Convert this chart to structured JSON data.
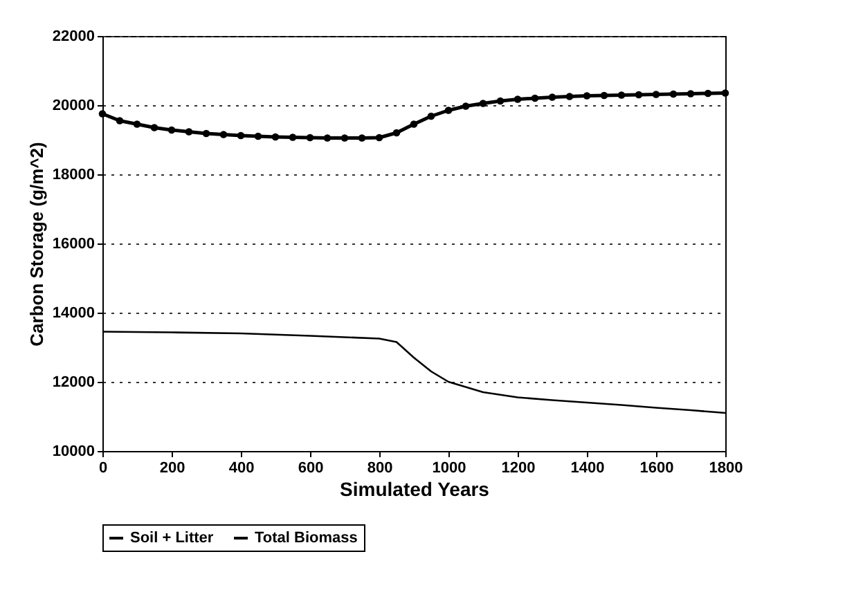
{
  "chart_data": {
    "type": "line",
    "xlabel": "Simulated Years",
    "ylabel": "Carbon Storage (g/m^2)",
    "xlim": [
      0,
      1800
    ],
    "xticks": [
      0,
      200,
      400,
      600,
      800,
      1000,
      1200,
      1400,
      1600,
      1800
    ],
    "ylim": [
      10000,
      22000
    ],
    "yticks": [
      10000,
      12000,
      14000,
      16000,
      18000,
      20000,
      22000
    ],
    "grid": "y",
    "legend": "bottom",
    "series": [
      {
        "name": "Soil + Litter",
        "color": "#000000",
        "marker": "none",
        "x": [
          0,
          200,
          400,
          600,
          800,
          850,
          900,
          950,
          1000,
          1100,
          1200,
          1300,
          1400,
          1500,
          1600,
          1700,
          1800
        ],
        "values": [
          13450,
          13430,
          13400,
          13330,
          13250,
          13150,
          12700,
          12300,
          12000,
          11700,
          11550,
          11470,
          11400,
          11330,
          11250,
          11180,
          11100
        ]
      },
      {
        "name": "Total Biomass",
        "color": "#000000",
        "marker": "circle",
        "x": [
          0,
          50,
          100,
          150,
          200,
          250,
          300,
          350,
          400,
          450,
          500,
          550,
          600,
          650,
          700,
          750,
          800,
          850,
          900,
          950,
          1000,
          1050,
          1100,
          1150,
          1200,
          1250,
          1300,
          1350,
          1400,
          1450,
          1500,
          1550,
          1600,
          1650,
          1700,
          1750,
          1800
        ],
        "values": [
          19750,
          19550,
          19450,
          19350,
          19280,
          19230,
          19180,
          19150,
          19120,
          19100,
          19080,
          19070,
          19060,
          19050,
          19050,
          19050,
          19060,
          19200,
          19450,
          19680,
          19850,
          19970,
          20050,
          20120,
          20170,
          20200,
          20230,
          20250,
          20270,
          20280,
          20290,
          20300,
          20310,
          20320,
          20330,
          20340,
          20350
        ]
      }
    ]
  }
}
